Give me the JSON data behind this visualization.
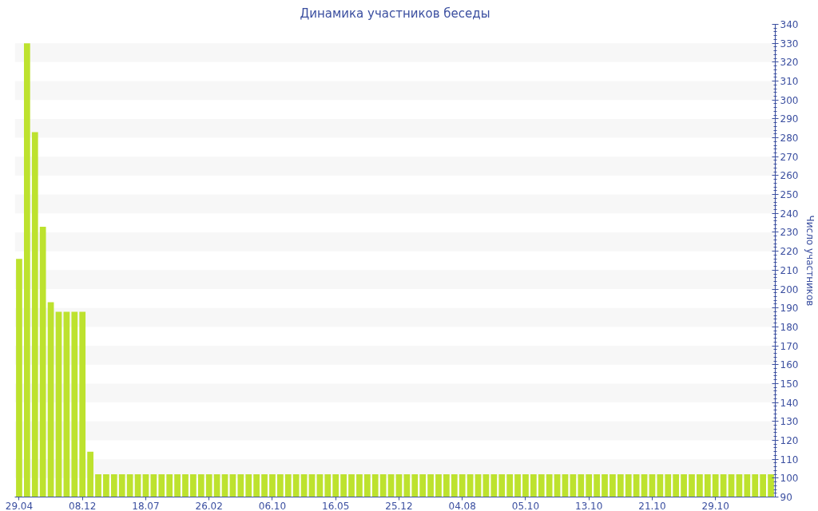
{
  "chart_data": {
    "type": "bar",
    "title": "Динамика участников беседы",
    "ylabel": "Число участников",
    "categories": [
      "29.04",
      null,
      null,
      null,
      null,
      null,
      null,
      null,
      "08.12",
      null,
      null,
      null,
      null,
      null,
      null,
      null,
      "18.07",
      null,
      null,
      null,
      null,
      null,
      null,
      null,
      "26.02",
      null,
      null,
      null,
      null,
      null,
      null,
      null,
      "06.10",
      null,
      null,
      null,
      null,
      null,
      null,
      null,
      "16.05",
      null,
      null,
      null,
      null,
      null,
      null,
      null,
      "25.12",
      null,
      null,
      null,
      null,
      null,
      null,
      null,
      "04.08",
      null,
      null,
      null,
      null,
      null,
      null,
      null,
      "05.10",
      null,
      null,
      null,
      null,
      null,
      null,
      null,
      "13.10",
      null,
      null,
      null,
      null,
      null,
      null,
      null,
      "21.10",
      null,
      null,
      null,
      null,
      null,
      null,
      null,
      "29.10",
      null,
      null,
      null,
      null,
      null,
      null,
      null
    ],
    "values": [
      216,
      330,
      283,
      233,
      193,
      188,
      188,
      188,
      188,
      114,
      102,
      102,
      102,
      102,
      102,
      102,
      102,
      102,
      102,
      102,
      102,
      102,
      102,
      102,
      102,
      102,
      102,
      102,
      102,
      102,
      102,
      102,
      102,
      102,
      102,
      102,
      102,
      102,
      102,
      102,
      102,
      102,
      102,
      102,
      102,
      102,
      102,
      102,
      102,
      102,
      102,
      102,
      102,
      102,
      102,
      102,
      102,
      102,
      102,
      102,
      102,
      102,
      102,
      102,
      102,
      102,
      102,
      102,
      102,
      102,
      102,
      102,
      102,
      102,
      102,
      102,
      102,
      102,
      102,
      102,
      102,
      102,
      102,
      102,
      102,
      102,
      102,
      102,
      102,
      102,
      102,
      102,
      102,
      102,
      102,
      102
    ],
    "color": "#bde22e",
    "ylim": [
      90,
      340
    ],
    "yticks": [
      90,
      100,
      110,
      120,
      130,
      140,
      150,
      160,
      170,
      180,
      190,
      200,
      210,
      220,
      230,
      240,
      250,
      260,
      270,
      280,
      290,
      300,
      310,
      320,
      330,
      340
    ],
    "bands": [
      {
        "axis": "y",
        "from": 100,
        "to": 110,
        "color": "#f7f7f7"
      },
      {
        "axis": "y",
        "from": 120,
        "to": 130,
        "color": "#f7f7f7"
      },
      {
        "axis": "y",
        "from": 140,
        "to": 150,
        "color": "#f7f7f7"
      },
      {
        "axis": "y",
        "from": 160,
        "to": 170,
        "color": "#f7f7f7"
      },
      {
        "axis": "y",
        "from": 180,
        "to": 190,
        "color": "#f7f7f7"
      },
      {
        "axis": "y",
        "from": 200,
        "to": 210,
        "color": "#f7f7f7"
      },
      {
        "axis": "y",
        "from": 220,
        "to": 230,
        "color": "#f7f7f7"
      },
      {
        "axis": "y",
        "from": 240,
        "to": 250,
        "color": "#f7f7f7"
      },
      {
        "axis": "y",
        "from": 260,
        "to": 270,
        "color": "#f7f7f7"
      },
      {
        "axis": "y",
        "from": 280,
        "to": 290,
        "color": "#f7f7f7"
      },
      {
        "axis": "y",
        "from": 300,
        "to": 310,
        "color": "#f7f7f7"
      },
      {
        "axis": "y",
        "from": 320,
        "to": 330,
        "color": "#f7f7f7"
      }
    ]
  }
}
